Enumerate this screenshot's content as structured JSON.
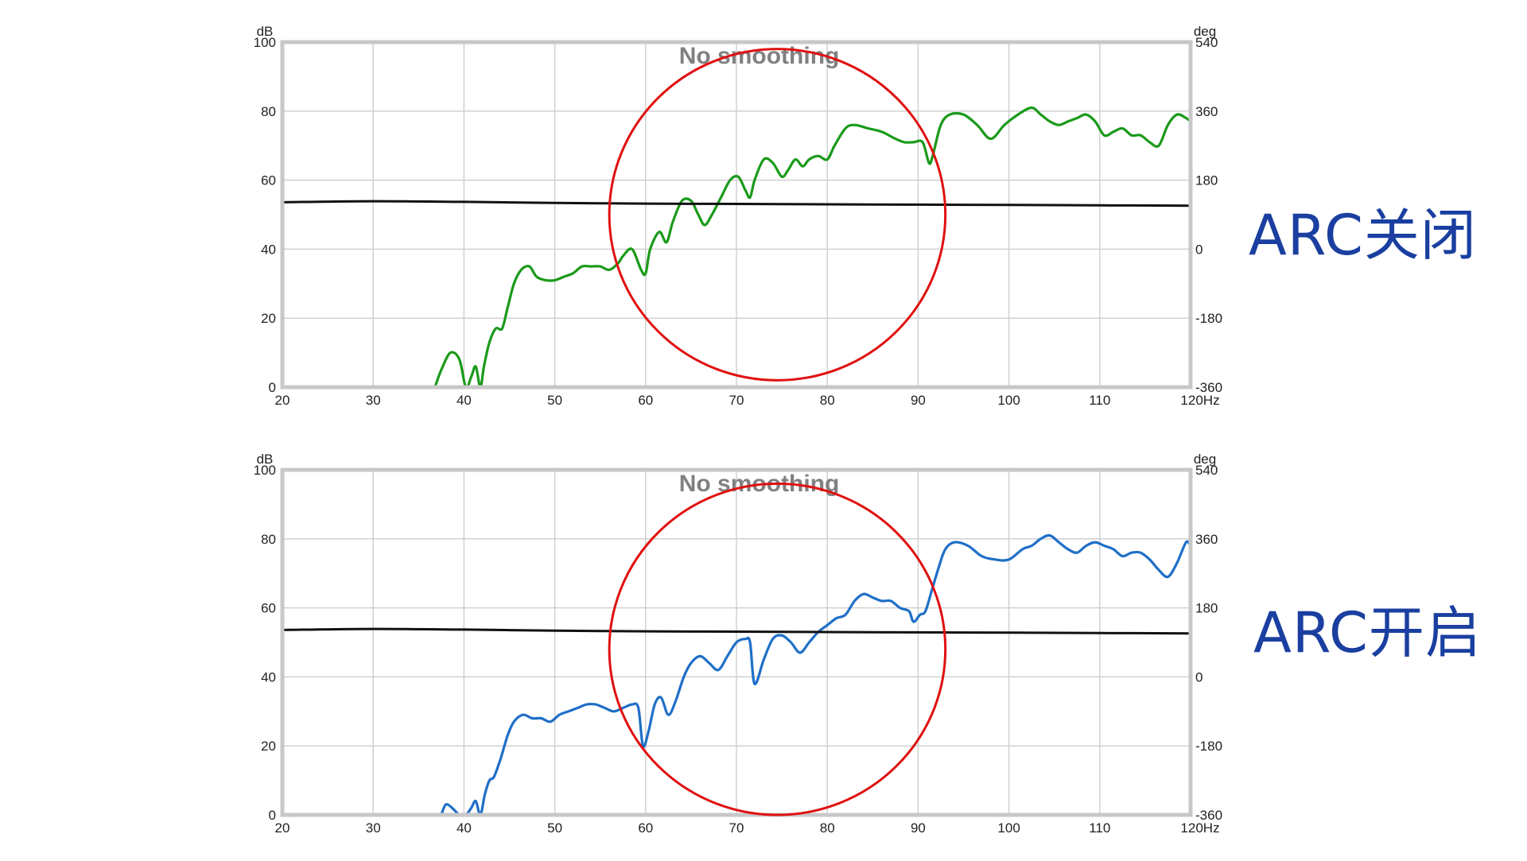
{
  "side_labels": {
    "top": "ARC关闭",
    "bottom": "ARC开启"
  },
  "colors": {
    "top_series": "#1a9a1a",
    "bottom_series": "#1f6fc8",
    "reference": "#111111",
    "circle": "#e01010",
    "grid": "#d0d0d0",
    "title": "#808080"
  },
  "chart_data": [
    {
      "type": "line",
      "title": "No smoothing",
      "xlabel": "Hz",
      "ylabel": "dB",
      "y2label": "deg",
      "xlim": [
        20,
        120
      ],
      "ylim": [
        0,
        100
      ],
      "y2lim": [
        -360,
        540
      ],
      "x_ticks": [
        "20",
        "30",
        "40",
        "50",
        "60",
        "70",
        "80",
        "90",
        "100",
        "110",
        "120"
      ],
      "y_ticks": [
        "0",
        "20",
        "40",
        "60",
        "80",
        "100"
      ],
      "y2_ticks": [
        "-360",
        "-180",
        "0",
        "180",
        "360",
        "540"
      ],
      "grid": true,
      "annotation": {
        "shape": "circle",
        "center": [
          74.5,
          50
        ],
        "rx_units": 18.5,
        "ry_units": 48
      },
      "series": [
        {
          "role": "response",
          "x": [
            36.8,
            37.5,
            38.5,
            39.5,
            40.2,
            40.8,
            41.3,
            41.8,
            42.2,
            42.8,
            43.5,
            44.2,
            44.8,
            45.5,
            46.3,
            47.2,
            48.0,
            49.0,
            50.0,
            51.0,
            52.0,
            53.0,
            54.0,
            55.0,
            56.0,
            57.0,
            57.5,
            58.5,
            59.5,
            60.0,
            60.5,
            61.5,
            62.3,
            63.0,
            64.0,
            65.0,
            65.8,
            66.5,
            67.3,
            68.3,
            69.3,
            70.2,
            71.0,
            71.5,
            72.0,
            73.0,
            74.0,
            75.0,
            75.7,
            76.5,
            77.3,
            78.0,
            79.0,
            80.0,
            80.8,
            82.0,
            83.0,
            84.5,
            86.0,
            87.5,
            88.5,
            89.5,
            90.5,
            91.2,
            91.6,
            92.5,
            93.5,
            95.0,
            96.5,
            98.0,
            99.5,
            101.0,
            102.5,
            103.5,
            104.5,
            105.5,
            106.5,
            107.5,
            108.5,
            109.5,
            110.5,
            111.5,
            112.5,
            113.5,
            114.5,
            115.5,
            116.5,
            117.5,
            118.5,
            119.5,
            120.0
          ],
          "y": [
            0,
            5,
            10,
            8,
            0,
            3,
            6,
            0,
            6,
            13,
            17,
            17,
            23,
            30,
            34,
            35,
            32,
            31,
            31,
            32,
            33,
            35,
            35,
            35,
            34,
            36,
            38,
            40,
            34,
            33,
            40,
            45,
            42,
            48,
            54,
            54,
            50,
            47,
            50,
            55,
            60,
            61,
            57,
            55,
            60,
            66,
            65,
            61,
            63,
            66,
            64,
            66,
            67,
            66,
            70,
            75,
            76,
            75,
            74,
            72,
            71,
            71,
            71,
            65,
            67,
            76,
            79,
            79,
            76,
            72,
            76,
            79,
            81,
            79,
            77,
            76,
            77,
            78,
            79,
            77,
            73,
            74,
            75,
            73,
            73,
            71,
            70,
            76,
            79,
            78,
            77
          ]
        },
        {
          "role": "reference",
          "x": [
            20,
            30,
            40,
            50,
            60,
            70,
            80,
            90,
            100,
            110,
            120
          ],
          "y": [
            53.6,
            53.9,
            53.7,
            53.4,
            53.2,
            53.1,
            53.0,
            52.9,
            52.8,
            52.7,
            52.6
          ]
        }
      ]
    },
    {
      "type": "line",
      "title": "No smoothing",
      "xlabel": "Hz",
      "ylabel": "dB",
      "y2label": "deg",
      "xlim": [
        20,
        120
      ],
      "ylim": [
        0,
        100
      ],
      "y2lim": [
        -360,
        540
      ],
      "x_ticks": [
        "20",
        "30",
        "40",
        "50",
        "60",
        "70",
        "80",
        "90",
        "100",
        "110",
        "120"
      ],
      "y_ticks": [
        "0",
        "20",
        "40",
        "60",
        "80",
        "100"
      ],
      "y2_ticks": [
        "-360",
        "-180",
        "0",
        "180",
        "360",
        "540"
      ],
      "grid": true,
      "annotation": {
        "shape": "circle",
        "center": [
          74.5,
          48
        ],
        "rx_units": 18.5,
        "ry_units": 48
      },
      "series": [
        {
          "role": "response",
          "x": [
            37.5,
            38.0,
            38.7,
            39.5,
            40.2,
            40.8,
            41.3,
            41.8,
            42.3,
            42.8,
            43.3,
            44.0,
            44.8,
            45.5,
            46.5,
            47.5,
            48.5,
            49.5,
            50.5,
            51.5,
            52.5,
            53.5,
            54.5,
            55.5,
            56.5,
            57.5,
            58.5,
            59.2,
            59.7,
            60.3,
            61.0,
            61.7,
            62.5,
            63.3,
            64.2,
            65.0,
            66.0,
            67.0,
            68.0,
            69.0,
            70.0,
            71.0,
            71.5,
            72.0,
            73.0,
            74.0,
            75.0,
            76.0,
            77.0,
            78.0,
            79.0,
            80.0,
            81.0,
            82.0,
            83.0,
            84.0,
            85.0,
            86.0,
            87.0,
            88.0,
            89.0,
            89.5,
            90.2,
            90.8,
            91.5,
            92.3,
            93.0,
            94.0,
            95.5,
            97.0,
            98.5,
            100.0,
            101.5,
            102.5,
            103.5,
            104.5,
            105.5,
            106.5,
            107.5,
            108.5,
            109.5,
            110.5,
            111.5,
            112.5,
            113.5,
            114.5,
            115.5,
            116.5,
            117.5,
            118.5,
            119.5,
            120.0
          ],
          "y": [
            0,
            3,
            2,
            0,
            0,
            2,
            4,
            0,
            6,
            10,
            11,
            16,
            23,
            27,
            29,
            28,
            28,
            27,
            29,
            30,
            31,
            32,
            32,
            31,
            30,
            31,
            32,
            31,
            20,
            24,
            32,
            34,
            29,
            33,
            40,
            44,
            46,
            44,
            42,
            46,
            50,
            51,
            50,
            38,
            45,
            51,
            52,
            50,
            47,
            50,
            53,
            55,
            57,
            58,
            62,
            64,
            63,
            62,
            62,
            60,
            59,
            56,
            58,
            59,
            65,
            72,
            77,
            79,
            78,
            75,
            74,
            74,
            77,
            78,
            80,
            81,
            79,
            77,
            76,
            78,
            79,
            78,
            77,
            75,
            76,
            76,
            74,
            71,
            69,
            73,
            79,
            78
          ]
        },
        {
          "role": "reference",
          "x": [
            20,
            30,
            40,
            50,
            60,
            70,
            80,
            90,
            100,
            110,
            120
          ],
          "y": [
            53.6,
            53.9,
            53.7,
            53.4,
            53.2,
            53.1,
            53.0,
            52.9,
            52.8,
            52.7,
            52.6
          ]
        }
      ]
    }
  ]
}
